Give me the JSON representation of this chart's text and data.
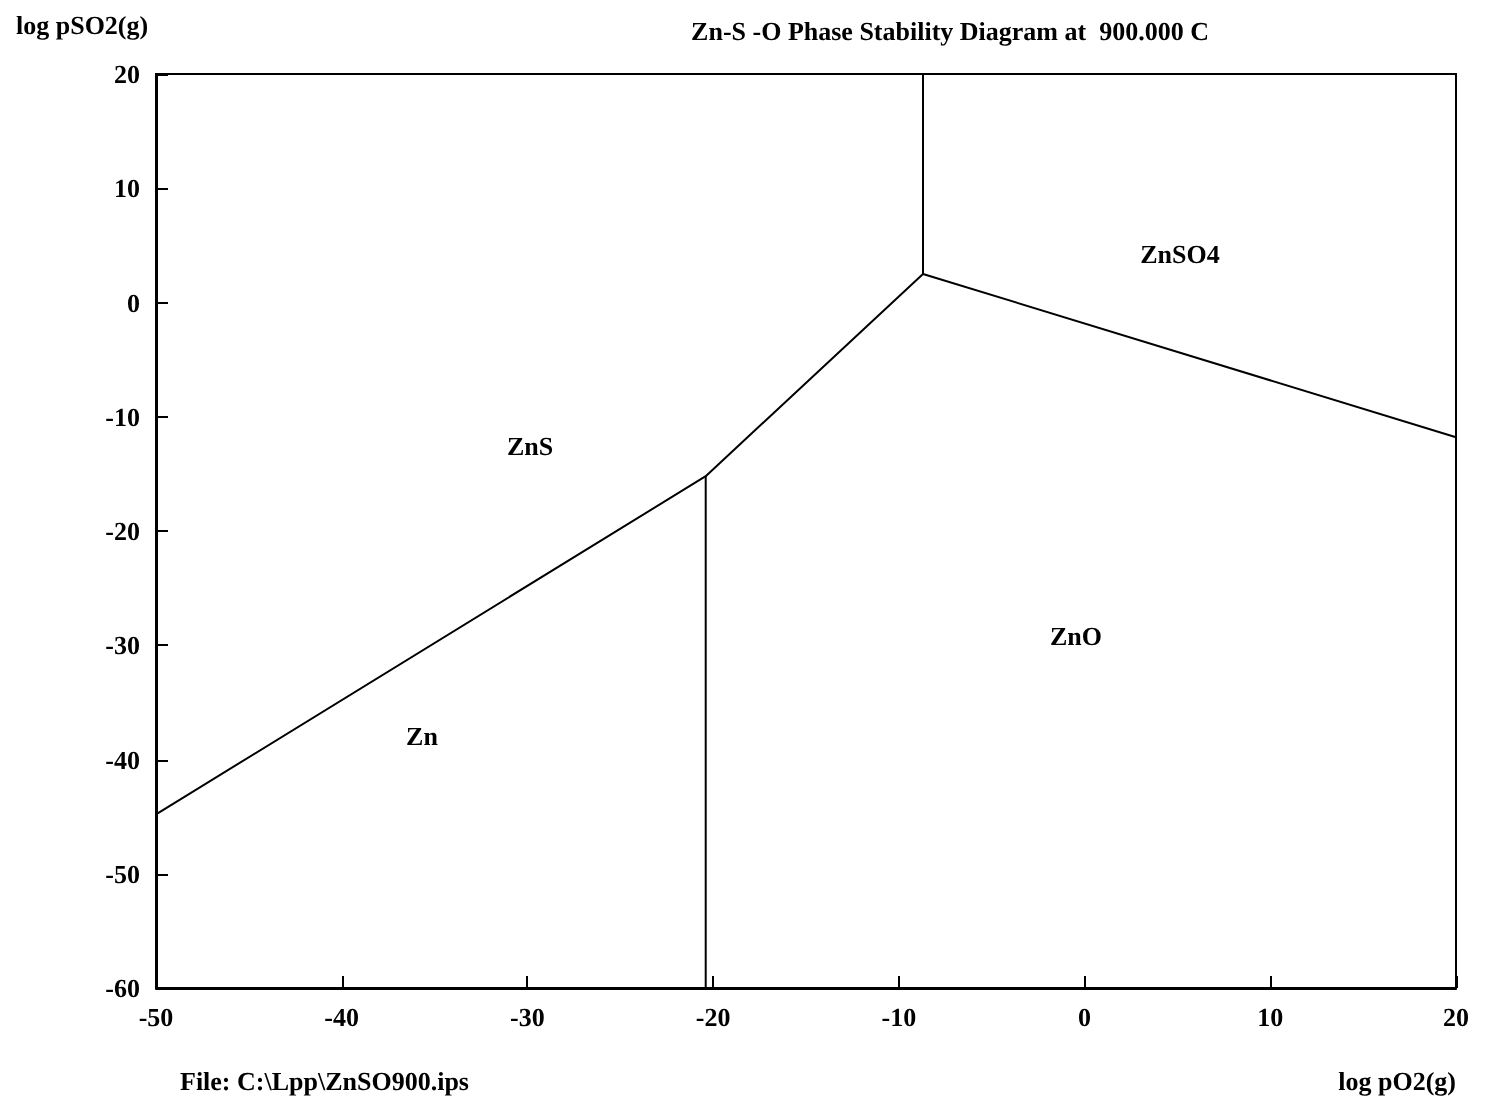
{
  "chart_data": {
    "type": "line",
    "title": "Zn-S -O Phase Stability Diagram at  900.000 C",
    "xlabel": "log pO2(g)",
    "ylabel": "log pSO2(g)",
    "xlim": [
      -50,
      20
    ],
    "xticks": [
      -50,
      -40,
      -30,
      -20,
      -10,
      0,
      10,
      20
    ],
    "ylim": [
      -60,
      20
    ],
    "yticks": [
      -60,
      -50,
      -40,
      -30,
      -20,
      -10,
      0,
      10,
      20
    ],
    "grid": false,
    "marker": "none",
    "line_style": "solid",
    "series": [
      {
        "color": "#000000",
        "x": [
          -50,
          -20.4,
          -8.7,
          20
        ],
        "values": [
          -44.8,
          -15.2,
          2.5,
          -11.8
        ]
      },
      {
        "color": "#000000",
        "x": [
          -20.4,
          -20.4
        ],
        "values": [
          -60,
          -15.2
        ]
      },
      {
        "color": "#000000",
        "x": [
          -8.7,
          -8.7
        ],
        "values": [
          2.5,
          20
        ]
      }
    ],
    "annotations": [
      "ZnSO4",
      "ZnS",
      "ZnO",
      "Zn",
      "File: C:\\Lpp\\ZnSO900.ips"
    ]
  }
}
